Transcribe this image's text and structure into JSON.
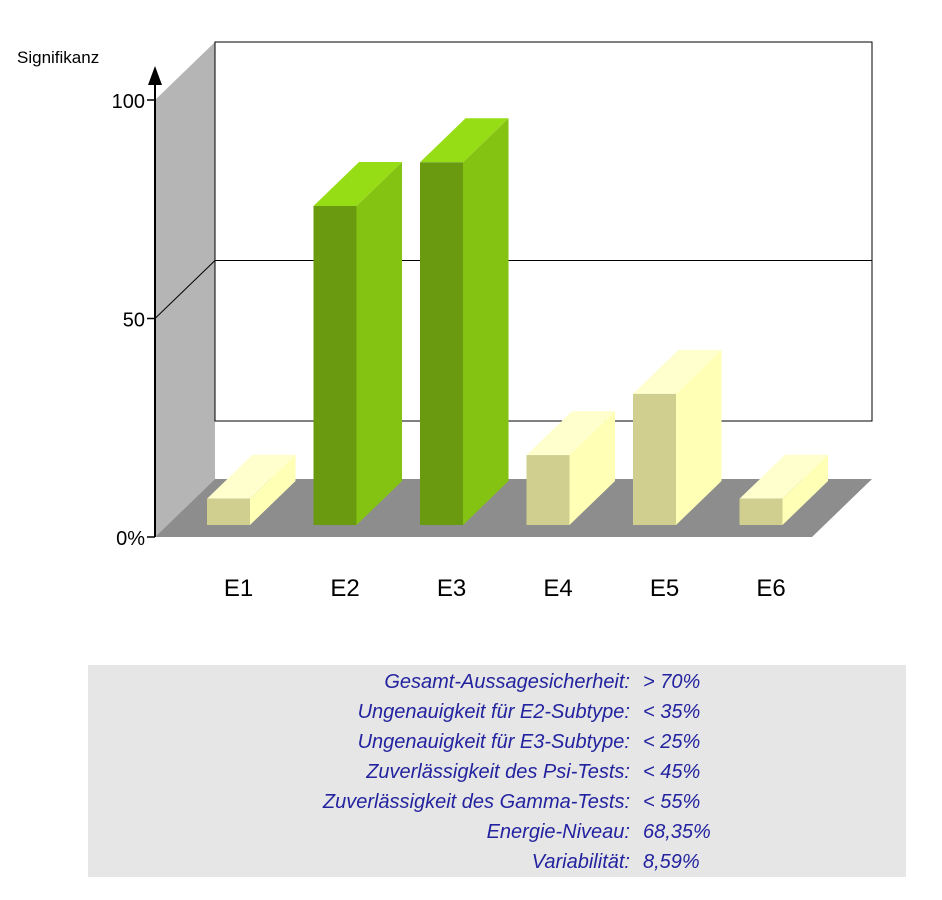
{
  "chart_data": {
    "type": "bar",
    "ylabel": "Signifikanz",
    "yticks": [
      "0%",
      "50",
      "100"
    ],
    "ylim": [
      0,
      100
    ],
    "categories": [
      "E1",
      "E2",
      "E3",
      "E4",
      "E5",
      "E6"
    ],
    "values": [
      6,
      73,
      83,
      16,
      30,
      6
    ],
    "bar_colors": [
      "#f6f4a8",
      "#7bb512",
      "#7bb512",
      "#f6f4a8",
      "#f6f4a8",
      "#f6f4a8"
    ],
    "gridlines": [
      50,
      100
    ],
    "style": "3d"
  },
  "stats": [
    {
      "label": "Gesamt-Aussagesicherheit:",
      "value": "> 70%"
    },
    {
      "label": "Ungenauigkeit für E2-Subtype:",
      "value": "< 35%"
    },
    {
      "label": "Ungenauigkeit für E3-Subtype:",
      "value": "< 25%"
    },
    {
      "label": "Zuverlässigkeit des Psi-Tests:",
      "value": "< 45%"
    },
    {
      "label": "Zuverlässigkeit des Gamma-Tests:",
      "value": "< 55%"
    },
    {
      "label": "Energie-Niveau:",
      "value": "68,35%"
    },
    {
      "label": "Variabilität:",
      "value": "8,59%"
    }
  ]
}
